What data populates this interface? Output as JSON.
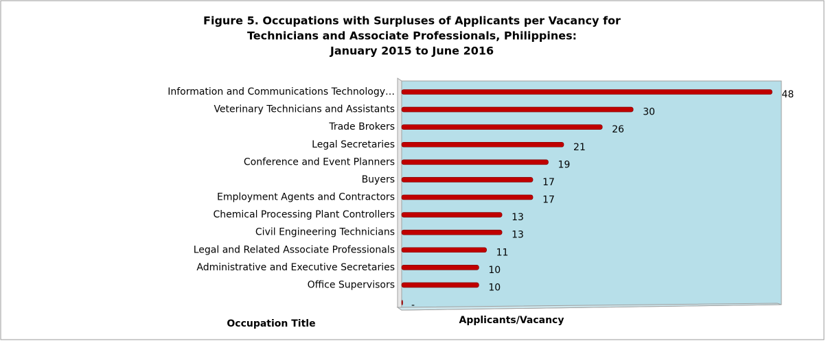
{
  "chart_data": {
    "type": "bar",
    "orientation": "horizontal",
    "title": [
      "Figure 5.  Occupations with Surpluses of Applicants per Vacancy for",
      "Technicians and Associate Professionals, Philippines:",
      "January 2015 to June 2016"
    ],
    "y_label": "Occupation Title",
    "x_label": "Applicants/Vacancy",
    "categories": [
      "Information and Communications Technology…",
      "Veterinary Technicians and Assistants",
      "Trade Brokers",
      "Legal Secretaries",
      "Conference and Event Planners",
      "Buyers",
      "Employment Agents and Contractors",
      "Chemical Processing Plant Controllers",
      "Civil Engineering Technicians",
      "Legal and Related Associate Professionals",
      "Administrative and Executive Secretaries",
      "Office Supervisors",
      null
    ],
    "values": [
      48,
      30,
      26,
      21,
      19,
      17,
      17,
      13,
      13,
      11,
      10,
      10,
      0
    ],
    "value_labels": [
      "48",
      "30",
      "26",
      "21",
      "19",
      "17",
      "17",
      "13",
      "13",
      "11",
      "10",
      "10",
      "-"
    ],
    "color": "#c00000",
    "background": "#b7dfe9",
    "xlim": [
      0,
      49.2
    ]
  }
}
